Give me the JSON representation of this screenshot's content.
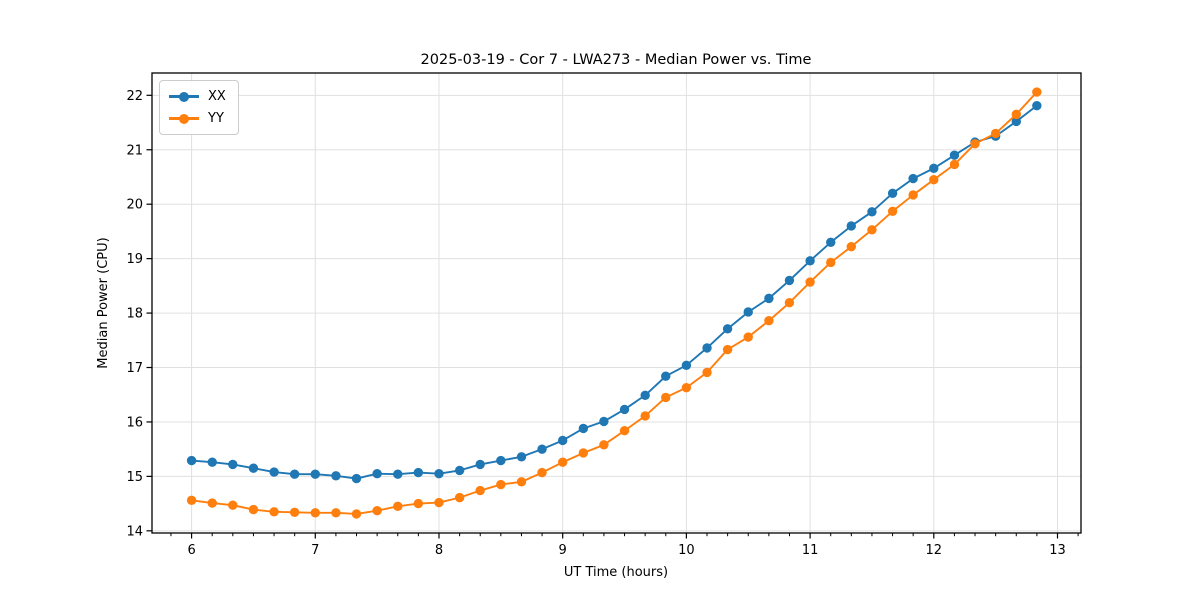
{
  "chart_data": {
    "type": "line",
    "title": "2025-03-19 - Cor 7 - LWA273 - Median Power vs. Time",
    "xlabel": "UT Time (hours)",
    "ylabel": "Median Power (CPU)",
    "xlim": [
      5.68,
      13.19
    ],
    "ylim": [
      13.96,
      22.41
    ],
    "xticks": [
      6,
      7,
      8,
      9,
      10,
      11,
      12,
      13
    ],
    "yticks": [
      14,
      15,
      16,
      17,
      18,
      19,
      20,
      21,
      22
    ],
    "x_minor_step_hours": 0.1667,
    "grid": true,
    "grid_color": "#e0e0e0",
    "legend_position": "upper-left",
    "x": [
      6.0,
      6.167,
      6.333,
      6.5,
      6.667,
      6.833,
      7.0,
      7.167,
      7.333,
      7.5,
      7.667,
      7.833,
      8.0,
      8.167,
      8.333,
      8.5,
      8.667,
      8.833,
      9.0,
      9.167,
      9.333,
      9.5,
      9.667,
      9.833,
      10.0,
      10.167,
      10.333,
      10.5,
      10.667,
      10.833,
      11.0,
      11.167,
      11.333,
      11.5,
      11.667,
      11.833,
      12.0,
      12.167,
      12.333,
      12.5,
      12.667,
      12.833
    ],
    "series": [
      {
        "name": "XX",
        "color": "#1f77b4",
        "values": [
          15.29,
          15.26,
          15.22,
          15.15,
          15.08,
          15.04,
          15.04,
          15.01,
          14.96,
          15.05,
          15.04,
          15.07,
          15.05,
          15.11,
          15.22,
          15.29,
          15.36,
          15.5,
          15.66,
          15.88,
          16.01,
          16.23,
          16.49,
          16.84,
          17.04,
          17.36,
          17.71,
          18.02,
          18.27,
          18.6,
          18.96,
          19.3,
          19.6,
          19.86,
          20.2,
          20.47,
          20.66,
          20.9,
          21.14,
          21.25,
          21.52,
          21.81
        ]
      },
      {
        "name": "YY",
        "color": "#ff7f0e",
        "values": [
          14.56,
          14.51,
          14.47,
          14.39,
          14.35,
          14.34,
          14.33,
          14.33,
          14.31,
          14.37,
          14.45,
          14.5,
          14.52,
          14.61,
          14.74,
          14.85,
          14.9,
          15.07,
          15.26,
          15.43,
          15.58,
          15.84,
          16.11,
          16.45,
          16.63,
          16.91,
          17.33,
          17.56,
          17.86,
          18.19,
          18.57,
          18.93,
          19.22,
          19.53,
          19.87,
          20.17,
          20.45,
          20.73,
          21.11,
          21.3,
          21.65,
          22.06
        ]
      }
    ]
  }
}
